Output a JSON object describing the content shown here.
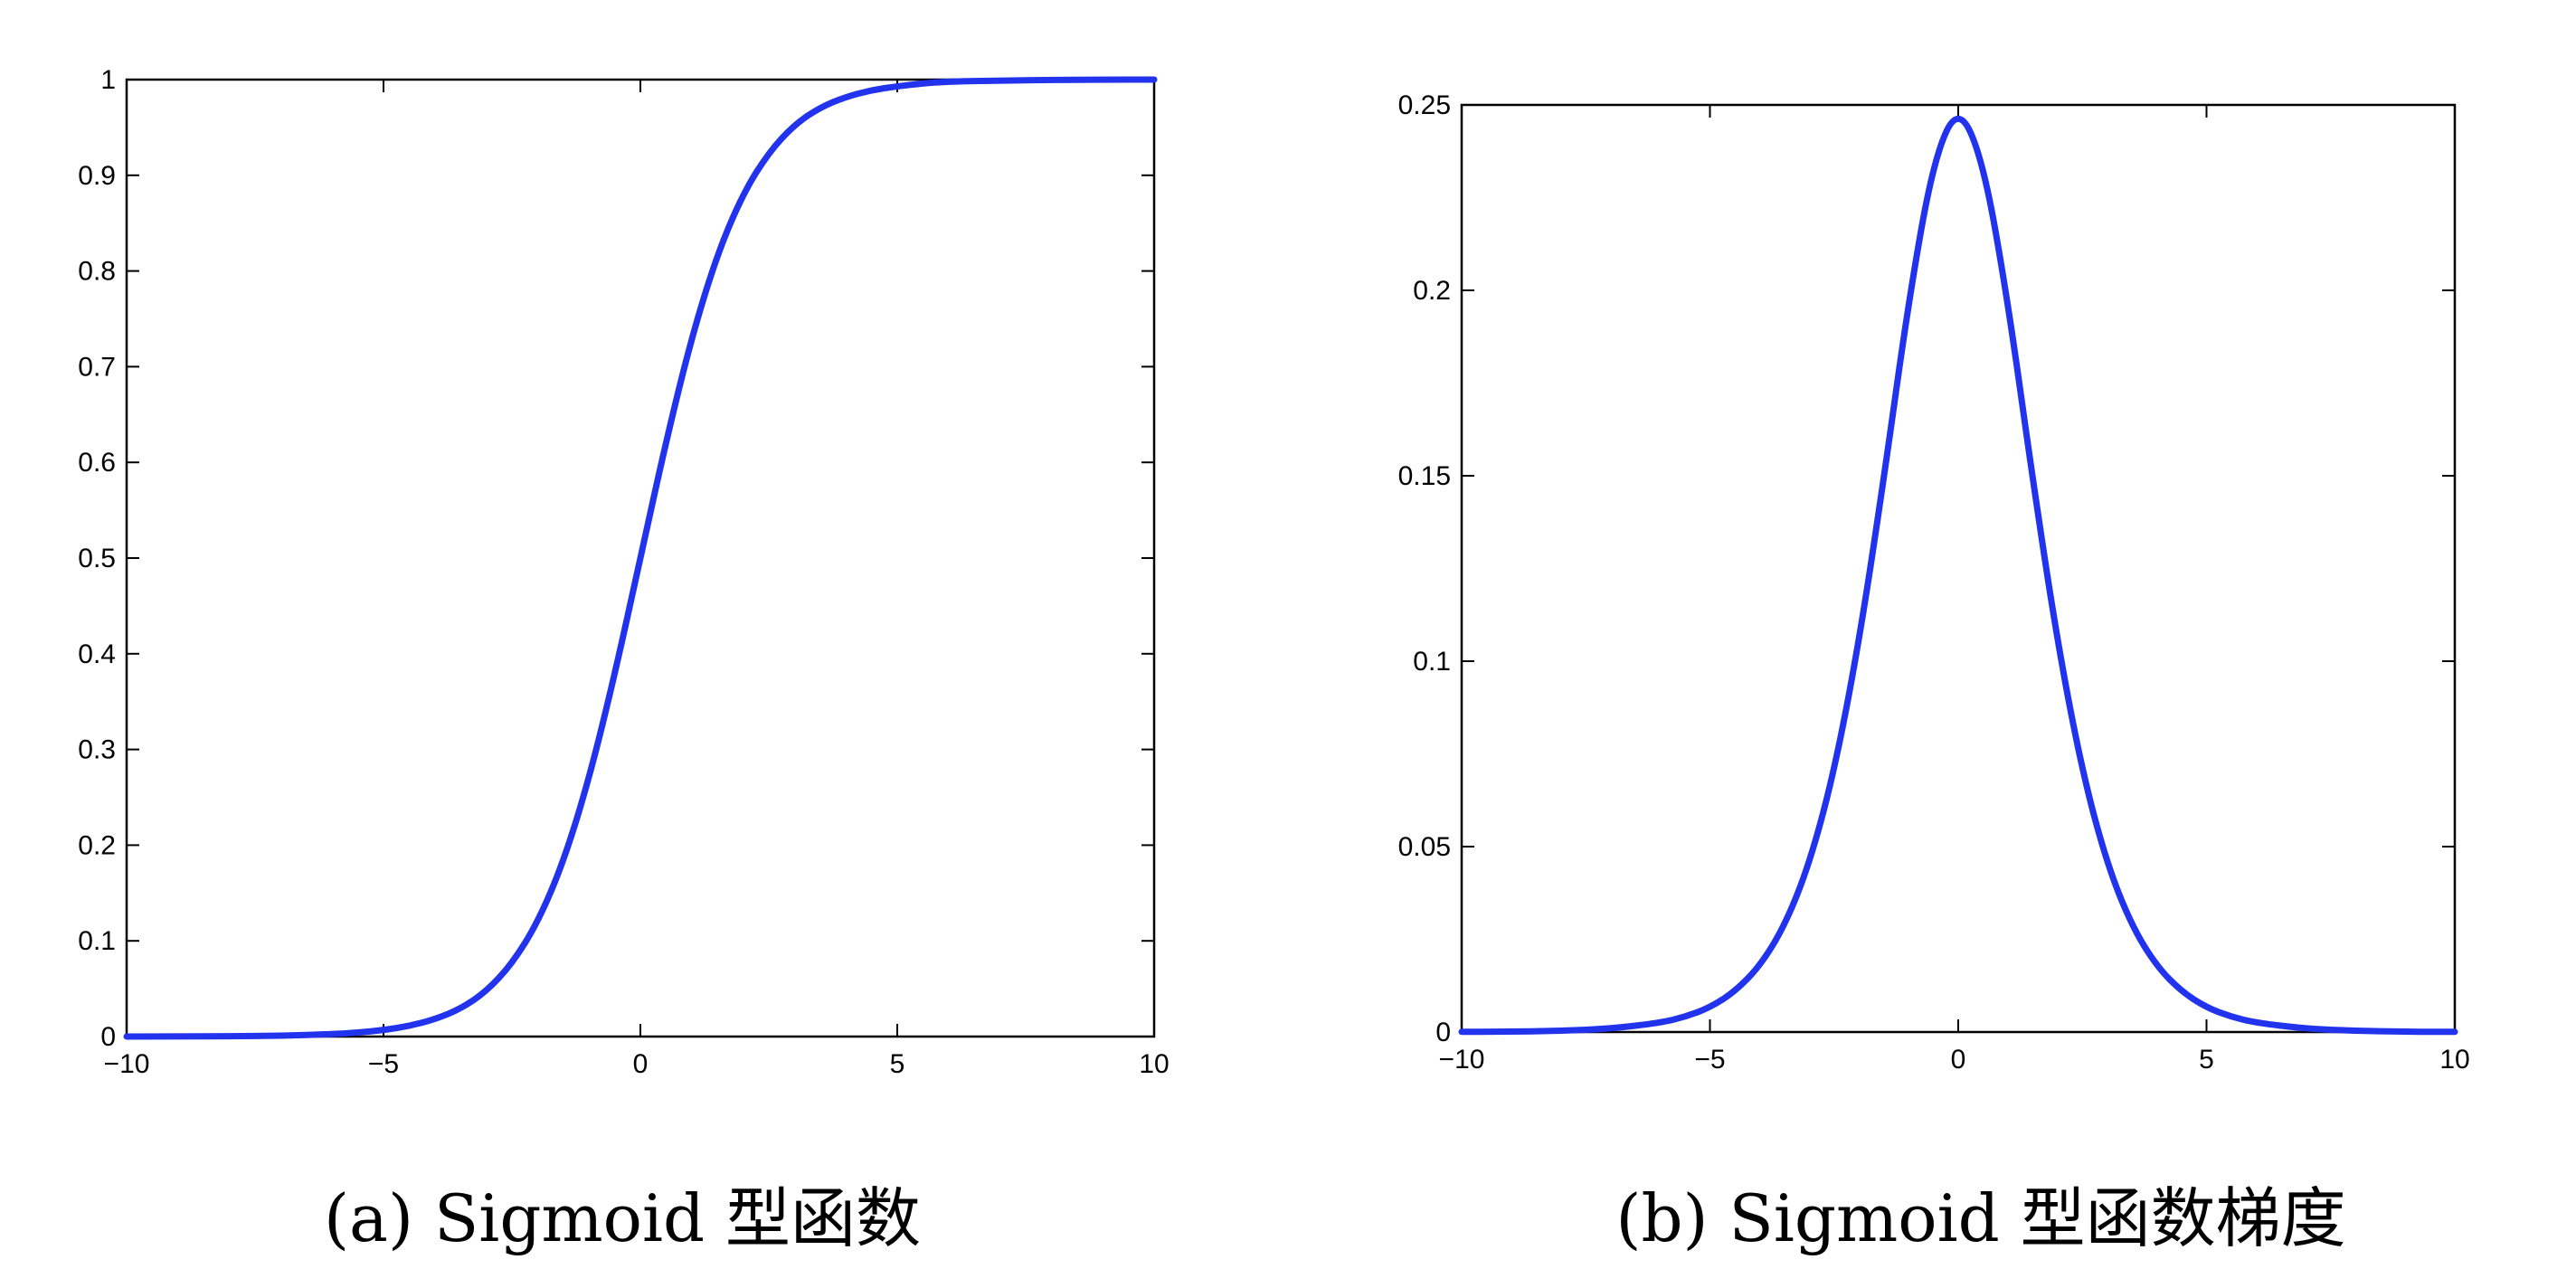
{
  "chart_data": [
    {
      "type": "line",
      "caption": "(a) Sigmoid 型函数",
      "title": "",
      "xlabel": "",
      "ylabel": "",
      "xlim": [
        -10,
        10
      ],
      "ylim": [
        0,
        1
      ],
      "grid": false,
      "x_ticks": [
        -10,
        -5,
        0,
        5,
        10
      ],
      "x_tick_labels": [
        "−10",
        "−5",
        "0",
        "5",
        "10"
      ],
      "y_ticks": [
        0,
        0.1,
        0.2,
        0.3,
        0.4,
        0.5,
        0.6,
        0.7,
        0.8,
        0.9,
        1
      ],
      "y_tick_labels": [
        "0",
        "0.1",
        "0.2",
        "0.3",
        "0.4",
        "0.5",
        "0.6",
        "0.7",
        "0.8",
        "0.9",
        "1"
      ],
      "series": [
        {
          "color": "#2233ee",
          "x": [
            -10,
            -9,
            -8,
            -7,
            -6,
            -5.5,
            -5,
            -4.5,
            -4,
            -3.5,
            -3,
            -2.5,
            -2,
            -1.5,
            -1,
            -0.5,
            0,
            0.5,
            1,
            1.5,
            2,
            2.5,
            3,
            3.5,
            4,
            4.5,
            5,
            5.5,
            6,
            7,
            8,
            9,
            10
          ],
          "values": [
            5e-05,
            0.0001,
            0.0003,
            0.0009,
            0.0025,
            0.0041,
            0.0067,
            0.011,
            0.018,
            0.029,
            0.047,
            0.076,
            0.119,
            0.182,
            0.269,
            0.378,
            0.5,
            0.622,
            0.731,
            0.818,
            0.881,
            0.924,
            0.953,
            0.971,
            0.982,
            0.989,
            0.993,
            0.996,
            0.998,
            0.999,
            0.9997,
            0.9999,
            1.0
          ]
        }
      ]
    },
    {
      "type": "line",
      "caption": "(b) Sigmoid 型函数梯度",
      "title": "",
      "xlabel": "",
      "ylabel": "",
      "xlim": [
        -10,
        10
      ],
      "ylim": [
        0,
        0.25
      ],
      "grid": false,
      "x_ticks": [
        -10,
        -5,
        0,
        5,
        10
      ],
      "x_tick_labels": [
        "−10",
        "−5",
        "0",
        "5",
        "10"
      ],
      "y_ticks": [
        0,
        0.05,
        0.1,
        0.15,
        0.2,
        0.25
      ],
      "y_tick_labels": [
        "0",
        "0.05",
        "0.1",
        "0.15",
        "0.2",
        "0.25"
      ],
      "series": [
        {
          "color": "#2233ee",
          "x": [
            -10,
            -9,
            -8,
            -7,
            -6,
            -5.5,
            -5,
            -4.5,
            -4,
            -3.5,
            -3,
            -2.5,
            -2,
            -1.5,
            -1,
            -0.5,
            0,
            0.5,
            1,
            1.5,
            2,
            2.5,
            3,
            3.5,
            4,
            4.5,
            5,
            5.5,
            6,
            7,
            8,
            9,
            10
          ],
          "values": [
            5e-05,
            0.0001,
            0.0003,
            0.0009,
            0.0025,
            0.0041,
            0.0066,
            0.0109,
            0.0177,
            0.0285,
            0.0452,
            0.0701,
            0.105,
            0.149,
            0.197,
            0.235,
            0.25,
            0.235,
            0.197,
            0.149,
            0.105,
            0.0701,
            0.0452,
            0.0285,
            0.0177,
            0.0109,
            0.0066,
            0.0041,
            0.0025,
            0.0009,
            0.0003,
            0.0001,
            5e-05
          ]
        }
      ]
    }
  ]
}
